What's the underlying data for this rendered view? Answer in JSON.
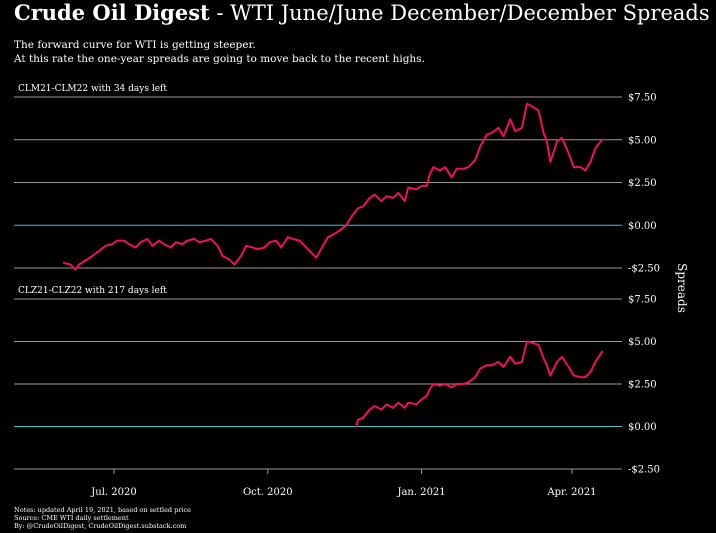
{
  "header": {
    "title_brand": "Crude Oil Digest",
    "title_rest": " - WTI June/June December/December Spreads",
    "subtitle_line1": "The forward curve for WTI is getting steeper.",
    "subtitle_line2": "At this rate the one-year spreads are going to move back to the recent highs."
  },
  "notes": {
    "line1": "Notes: updated April 19, 2021, based on settled price",
    "line2": "Source: CME WTI daily settlement",
    "line3": "By: @CrudeOilDigest, CrudeOilDigest.substack.com"
  },
  "colors": {
    "series": "#f0105a",
    "zero_line": "#3fc8c8",
    "grid": "#9a9a9a",
    "background": "#000000"
  },
  "chart_data": {
    "type": "line",
    "ylabel": "Spreads",
    "x_ticks": [
      {
        "date": "2020-07-01",
        "label": "Jul. 2020"
      },
      {
        "date": "2020-10-01",
        "label": "Oct. 2020"
      },
      {
        "date": "2021-01-01",
        "label": "Jan. 2021"
      },
      {
        "date": "2021-04-01",
        "label": "Apr. 2021"
      }
    ],
    "panels": [
      {
        "label": "CLM21-CLM22 with 34 days left",
        "ylim": [
          -2.5,
          7.5
        ],
        "y_ticks": [
          {
            "value": 7.5,
            "label": "$7.50"
          },
          {
            "value": 5.0,
            "label": "$5.00"
          },
          {
            "value": 2.5,
            "label": "$2.50"
          },
          {
            "value": 0.0,
            "label": "$0.00"
          },
          {
            "value": -2.5,
            "label": "-$2.50"
          }
        ],
        "points": [
          [
            "2020-06-01",
            -2.2
          ],
          [
            "2020-06-05",
            -2.3
          ],
          [
            "2020-06-08",
            -2.6
          ],
          [
            "2020-06-10",
            -2.3
          ],
          [
            "2020-06-15",
            -2.0
          ],
          [
            "2020-06-18",
            -1.8
          ],
          [
            "2020-06-22",
            -1.5
          ],
          [
            "2020-06-26",
            -1.2
          ],
          [
            "2020-06-30",
            -1.1
          ],
          [
            "2020-07-03",
            -0.9
          ],
          [
            "2020-07-07",
            -0.9
          ],
          [
            "2020-07-10",
            -1.1
          ],
          [
            "2020-07-14",
            -1.3
          ],
          [
            "2020-07-17",
            -1.0
          ],
          [
            "2020-07-21",
            -0.8
          ],
          [
            "2020-07-24",
            -1.2
          ],
          [
            "2020-07-28",
            -0.9
          ],
          [
            "2020-07-31",
            -1.1
          ],
          [
            "2020-08-04",
            -1.3
          ],
          [
            "2020-08-07",
            -1.0
          ],
          [
            "2020-08-11",
            -1.1
          ],
          [
            "2020-08-14",
            -0.9
          ],
          [
            "2020-08-18",
            -0.8
          ],
          [
            "2020-08-21",
            -1.0
          ],
          [
            "2020-08-25",
            -0.9
          ],
          [
            "2020-08-28",
            -0.8
          ],
          [
            "2020-09-01",
            -1.2
          ],
          [
            "2020-09-04",
            -1.8
          ],
          [
            "2020-09-08",
            -2.0
          ],
          [
            "2020-09-11",
            -2.3
          ],
          [
            "2020-09-15",
            -1.8
          ],
          [
            "2020-09-18",
            -1.2
          ],
          [
            "2020-09-22",
            -1.3
          ],
          [
            "2020-09-25",
            -1.4
          ],
          [
            "2020-09-29",
            -1.3
          ],
          [
            "2020-10-02",
            -1.0
          ],
          [
            "2020-10-06",
            -0.9
          ],
          [
            "2020-10-09",
            -1.3
          ],
          [
            "2020-10-13",
            -0.7
          ],
          [
            "2020-10-16",
            -0.8
          ],
          [
            "2020-10-20",
            -0.9
          ],
          [
            "2020-10-23",
            -1.2
          ],
          [
            "2020-10-27",
            -1.6
          ],
          [
            "2020-10-30",
            -1.9
          ],
          [
            "2020-11-03",
            -1.2
          ],
          [
            "2020-11-06",
            -0.7
          ],
          [
            "2020-11-10",
            -0.5
          ],
          [
            "2020-11-13",
            -0.3
          ],
          [
            "2020-11-17",
            0.0
          ],
          [
            "2020-11-20",
            0.5
          ],
          [
            "2020-11-24",
            1.0
          ],
          [
            "2020-11-27",
            1.1
          ],
          [
            "2020-12-01",
            1.6
          ],
          [
            "2020-12-04",
            1.8
          ],
          [
            "2020-12-08",
            1.4
          ],
          [
            "2020-12-11",
            1.7
          ],
          [
            "2020-12-15",
            1.6
          ],
          [
            "2020-12-18",
            1.9
          ],
          [
            "2020-12-22",
            1.4
          ],
          [
            "2020-12-24",
            2.2
          ],
          [
            "2020-12-29",
            2.1
          ],
          [
            "2021-01-01",
            2.3
          ],
          [
            "2021-01-04",
            2.3
          ],
          [
            "2021-01-06",
            3.0
          ],
          [
            "2021-01-08",
            3.4
          ],
          [
            "2021-01-12",
            3.2
          ],
          [
            "2021-01-15",
            3.4
          ],
          [
            "2021-01-19",
            2.8
          ],
          [
            "2021-01-22",
            3.3
          ],
          [
            "2021-01-26",
            3.3
          ],
          [
            "2021-01-29",
            3.4
          ],
          [
            "2021-02-02",
            3.8
          ],
          [
            "2021-02-05",
            4.6
          ],
          [
            "2021-02-09",
            5.3
          ],
          [
            "2021-02-12",
            5.4
          ],
          [
            "2021-02-16",
            5.7
          ],
          [
            "2021-02-19",
            5.2
          ],
          [
            "2021-02-23",
            6.2
          ],
          [
            "2021-02-26",
            5.5
          ],
          [
            "2021-03-02",
            5.7
          ],
          [
            "2021-03-05",
            7.1
          ],
          [
            "2021-03-09",
            6.9
          ],
          [
            "2021-03-12",
            6.7
          ],
          [
            "2021-03-15",
            5.4
          ],
          [
            "2021-03-17",
            4.9
          ],
          [
            "2021-03-19",
            3.7
          ],
          [
            "2021-03-23",
            4.9
          ],
          [
            "2021-03-26",
            5.1
          ],
          [
            "2021-03-30",
            4.2
          ],
          [
            "2021-04-02",
            3.4
          ],
          [
            "2021-04-06",
            3.4
          ],
          [
            "2021-04-09",
            3.2
          ],
          [
            "2021-04-12",
            3.7
          ],
          [
            "2021-04-15",
            4.5
          ],
          [
            "2021-04-19",
            5.0
          ]
        ]
      },
      {
        "label": "CLZ21-CLZ22 with 217 days left",
        "ylim": [
          -2.5,
          7.5
        ],
        "y_ticks": [
          {
            "value": 7.5,
            "label": "$7.50"
          },
          {
            "value": 5.0,
            "label": "$5.00"
          },
          {
            "value": 2.5,
            "label": "$2.50"
          },
          {
            "value": 0.0,
            "label": "$0.00"
          },
          {
            "value": -2.5,
            "label": "-$2.50"
          }
        ],
        "points": [
          [
            "2020-11-23",
            0.0
          ],
          [
            "2020-11-24",
            0.4
          ],
          [
            "2020-11-27",
            0.5
          ],
          [
            "2020-12-01",
            1.0
          ],
          [
            "2020-12-04",
            1.2
          ],
          [
            "2020-12-08",
            1.0
          ],
          [
            "2020-12-11",
            1.3
          ],
          [
            "2020-12-15",
            1.1
          ],
          [
            "2020-12-18",
            1.4
          ],
          [
            "2020-12-22",
            1.1
          ],
          [
            "2020-12-24",
            1.4
          ],
          [
            "2020-12-29",
            1.3
          ],
          [
            "2021-01-01",
            1.6
          ],
          [
            "2021-01-04",
            1.8
          ],
          [
            "2021-01-06",
            2.2
          ],
          [
            "2021-01-08",
            2.5
          ],
          [
            "2021-01-12",
            2.4
          ],
          [
            "2021-01-15",
            2.5
          ],
          [
            "2021-01-19",
            2.3
          ],
          [
            "2021-01-22",
            2.5
          ],
          [
            "2021-01-26",
            2.5
          ],
          [
            "2021-01-29",
            2.6
          ],
          [
            "2021-02-02",
            2.9
          ],
          [
            "2021-02-05",
            3.4
          ],
          [
            "2021-02-09",
            3.6
          ],
          [
            "2021-02-12",
            3.6
          ],
          [
            "2021-02-16",
            3.8
          ],
          [
            "2021-02-19",
            3.5
          ],
          [
            "2021-02-23",
            4.1
          ],
          [
            "2021-02-26",
            3.7
          ],
          [
            "2021-03-02",
            3.8
          ],
          [
            "2021-03-05",
            5.0
          ],
          [
            "2021-03-09",
            4.9
          ],
          [
            "2021-03-12",
            4.8
          ],
          [
            "2021-03-15",
            4.0
          ],
          [
            "2021-03-17",
            3.6
          ],
          [
            "2021-03-19",
            3.0
          ],
          [
            "2021-03-23",
            3.8
          ],
          [
            "2021-03-26",
            4.1
          ],
          [
            "2021-03-30",
            3.5
          ],
          [
            "2021-04-02",
            3.0
          ],
          [
            "2021-04-06",
            2.9
          ],
          [
            "2021-04-09",
            2.9
          ],
          [
            "2021-04-12",
            3.2
          ],
          [
            "2021-04-15",
            3.8
          ],
          [
            "2021-04-19",
            4.4
          ]
        ]
      }
    ]
  }
}
